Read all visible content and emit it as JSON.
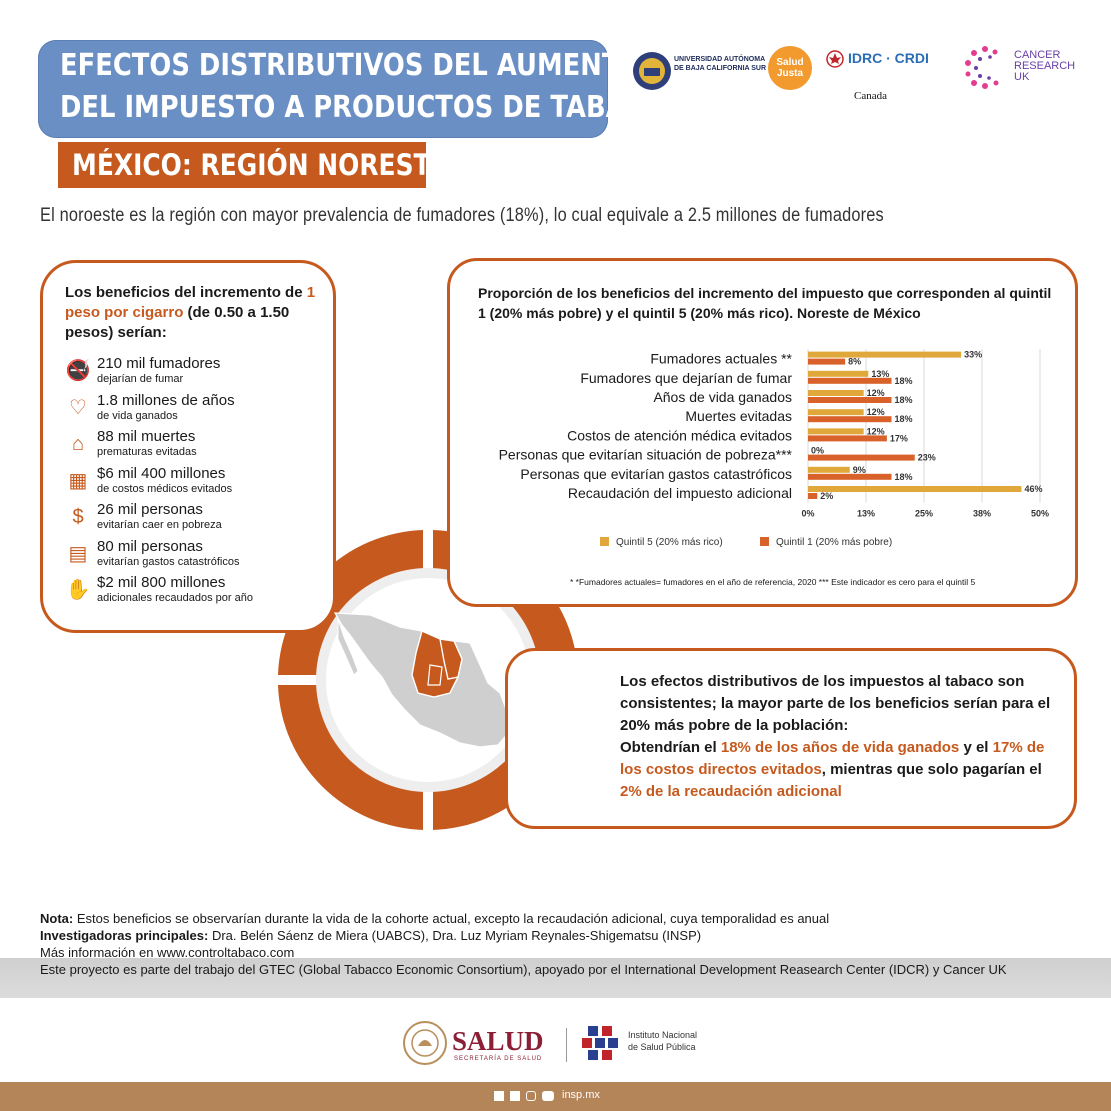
{
  "header": {
    "title_line1": "EFECTOS DISTRIBUTIVOS DEL AUMENTO",
    "title_line2": "DEL IMPUESTO A PRODUCTOS DE TABACO",
    "subtitle": "MÉXICO: REGIÓN NORESTE"
  },
  "logos": {
    "uabcs_line1": "UNIVERSIDAD AUTÓNOMA",
    "uabcs_line2": "DE BAJA CALIFORNIA SUR",
    "salud_justa_line1": "Salud",
    "salud_justa_line2": "Justa",
    "idrc": "IDRC · CRDI",
    "canada": "Canada",
    "cancer_line1": "CANCER",
    "cancer_line2": "RESEARCH",
    "cancer_line3": "UK"
  },
  "intro": "El noroeste es la región con mayor prevalencia de fumadores (18%), lo cual equivale a 2.5 millones de fumadores",
  "benefits": {
    "head_part1": "Los beneficios del incremento de ",
    "head_highlight": "1 peso por cigarro",
    "head_part2": " (de 0.50 a 1.50 pesos) serían:",
    "items": [
      {
        "icon": "no-smoking-icon",
        "big": "210 mil fumadores",
        "small": "dejarían de fumar"
      },
      {
        "icon": "heartbeat-icon",
        "big": "1.8 millones de años",
        "small": "de vida ganados"
      },
      {
        "icon": "tombstone-icon",
        "big": "88 mil muertes",
        "small": "prematuras evitadas"
      },
      {
        "icon": "medical-costs-icon",
        "big": "$6 mil 400 millones",
        "small": "de costos médicos evitados"
      },
      {
        "icon": "money-no-icon",
        "big": "26 mil personas",
        "small": "evitarían caer en pobreza"
      },
      {
        "icon": "invoice-icon",
        "big": "80 mil personas",
        "small": "evitarían gastos catastróficos"
      },
      {
        "icon": "hand-money-icon",
        "big": "$2 mil 800 millones",
        "small": "adicionales recaudados por año"
      }
    ]
  },
  "chart_data": {
    "type": "bar",
    "orientation": "horizontal",
    "title": "Proporción de los beneficios del incremento del impuesto que corresponden al quintil 1 (20% más pobre) y el quintil 5 (20% más rico). Noreste de México",
    "categories": [
      "Fumadores actuales **",
      "Fumadores que dejarían de fumar",
      "Años de vida ganados",
      "Muertes evitadas",
      "Costos de atención médica evitados",
      "Personas que evitarían situación de pobreza***",
      "Personas que evitarían gastos catastróficos",
      "Recaudación del impuesto adicional"
    ],
    "series": [
      {
        "name": "Quintil 5 (20% más rico)",
        "color": "#e0a83a",
        "values": [
          33,
          13,
          12,
          12,
          12,
          0,
          9,
          46
        ],
        "labels": [
          "33%",
          "13%",
          "12%",
          "12%",
          "12%",
          "0%",
          "9%",
          "46%"
        ]
      },
      {
        "name": "Quintil 1 (20% más pobre)",
        "color": "#d9622b",
        "values": [
          8,
          18,
          18,
          18,
          17,
          23,
          18,
          2
        ],
        "labels": [
          "8%",
          "18%",
          "18%",
          "18%",
          "17%",
          "23%",
          "18%",
          "2%"
        ]
      }
    ],
    "xticks": [
      "0%",
      "13%",
      "25%",
      "38%",
      "50%"
    ],
    "xlim": [
      0,
      50
    ],
    "grid": true,
    "legend": "bottom",
    "note": "* *Fumadores actuales= fumadores en el año de referencia, 2020   *** Este indicador es cero para el quintil 5"
  },
  "conclusion": {
    "p1": "Los efectos distributivos de los impuestos al tabaco son consistentes; la mayor parte de los beneficios serían para el 20% más pobre de la población:",
    "p2a": "Obtendrían el ",
    "h1": "18% de los años de vida ganados",
    "p2b": " y el ",
    "h2": "17% de los costos directos evitados",
    "p2c": ", mientras que solo pagarían el ",
    "h3": "2% de la recaudación adicional"
  },
  "footer": {
    "note_label": "Nota:",
    "note_text": " Estos beneficios se observarían durante la vida de la cohorte actual, excepto la recaudación adicional, cuya temporalidad es anual",
    "inv_label": "Investigadoras principales:",
    "inv_text": " Dra. Belén Sáenz de Miera (UABCS), Dra. Luz Myriam Reynales-Shigematsu (INSP)",
    "more": "Más información en www.controltabaco.com",
    "project": "Este proyecto es parte del trabajo del GTEC (Global Tabacco Economic Consortium), apoyado por el International Development Reasearch Center (IDCR) y Cancer UK",
    "salud": "SALUD",
    "salud_sub": "SECRETARÍA DE SALUD",
    "insp_line1": "Instituto Nacional",
    "insp_line2": "de Salud Pública",
    "social": "insp.mx"
  },
  "colors": {
    "accent": "#c65a1e",
    "title_blue": "#6a8fc4",
    "quintil5": "#e0a83a",
    "quintil1": "#d9622b"
  }
}
